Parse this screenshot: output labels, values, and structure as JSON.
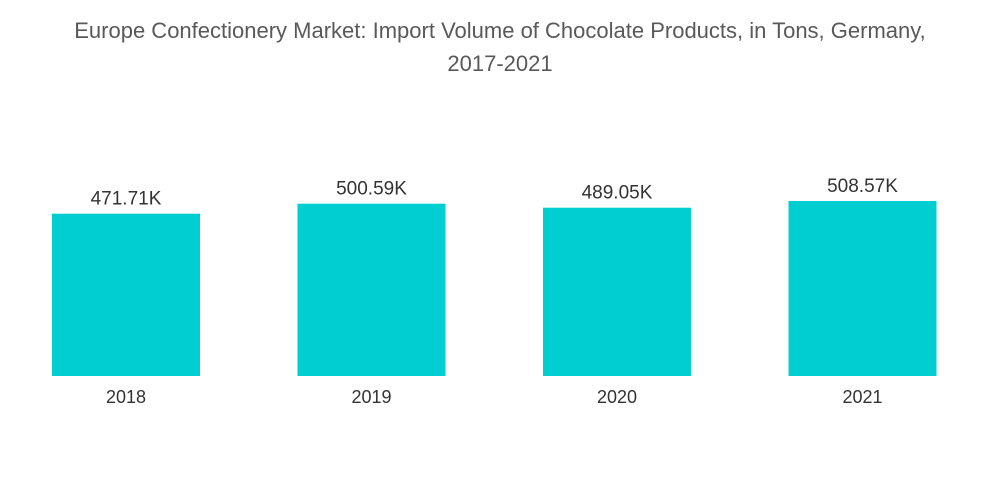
{
  "chart_data": {
    "type": "bar",
    "title_lines": [
      "Europe Confectionery Market: Import Volume of Chocolate Products, in Tons, Germany,",
      "2017-2021"
    ],
    "categories": [
      "2018",
      "2019",
      "2020",
      "2021"
    ],
    "values": [
      471.71,
      500.59,
      489.05,
      508.57
    ],
    "value_labels": [
      "471.71K",
      "500.59K",
      "489.05K",
      "508.57K"
    ],
    "xlabel": "",
    "ylabel": "",
    "ylim": [
      0,
      508.57
    ],
    "grid": false,
    "legend": "none",
    "bar_color": "#00CED1"
  }
}
